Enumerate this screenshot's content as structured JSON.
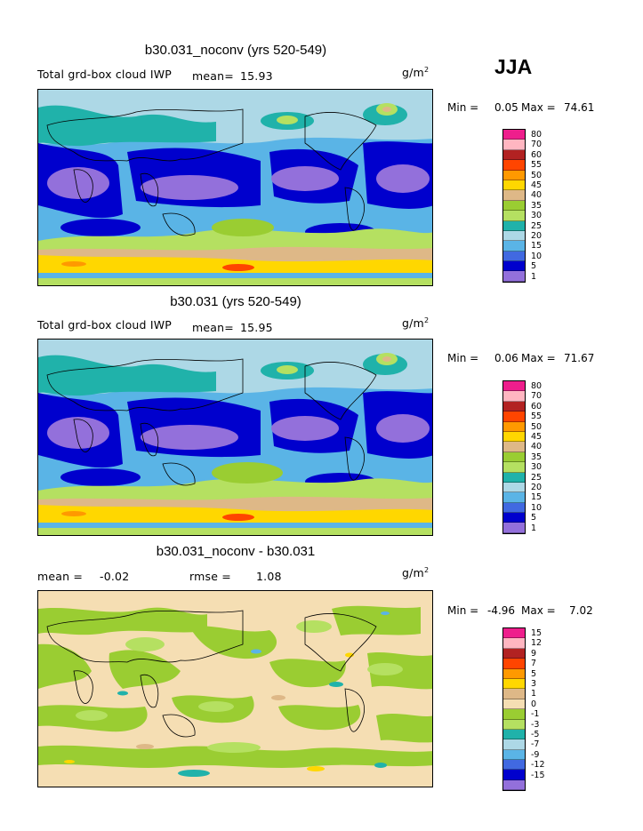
{
  "season": "JJA",
  "unit_base": "g/m",
  "unit_exp": "2",
  "panels": [
    {
      "title": "b30.031_noconv (yrs 520-549)",
      "left_label": "Total grd-box cloud IWP",
      "mean_label": "mean=",
      "mean_value": "15.93",
      "min_label": "Min =",
      "min_value": "0.05",
      "max_label": "Max =",
      "max_value": "74.61",
      "legend": {
        "labels": [
          "80",
          "70",
          "60",
          "55",
          "50",
          "45",
          "40",
          "35",
          "30",
          "25",
          "20",
          "15",
          "10",
          "5",
          "1"
        ],
        "colors": [
          "#ee1e8c",
          "#ffb6c1",
          "#b22222",
          "#ff4500",
          "#ff9900",
          "#ffd700",
          "#deb887",
          "#9acd32",
          "#b5e061",
          "#20b2aa",
          "#add8e6",
          "#5ab4e6",
          "#4169e1",
          "#0000cd",
          "#9370db"
        ]
      }
    },
    {
      "title": "b30.031 (yrs 520-549)",
      "left_label": "Total grd-box cloud IWP",
      "mean_label": "mean=",
      "mean_value": "15.95",
      "min_label": "Min =",
      "min_value": "0.06",
      "max_label": "Max =",
      "max_value": "71.67",
      "legend": {
        "labels": [
          "80",
          "70",
          "60",
          "55",
          "50",
          "45",
          "40",
          "35",
          "30",
          "25",
          "20",
          "15",
          "10",
          "5",
          "1"
        ],
        "colors": [
          "#ee1e8c",
          "#ffb6c1",
          "#b22222",
          "#ff4500",
          "#ff9900",
          "#ffd700",
          "#deb887",
          "#9acd32",
          "#b5e061",
          "#20b2aa",
          "#add8e6",
          "#5ab4e6",
          "#4169e1",
          "#0000cd",
          "#9370db"
        ]
      }
    },
    {
      "title": "b30.031_noconv - b30.031",
      "mean_label": "mean =",
      "mean_value": "-0.02",
      "rmse_label": "rmse =",
      "rmse_value": "1.08",
      "min_label": "Min =",
      "min_value": "-4.96",
      "max_label": "Max =",
      "max_value": "7.02",
      "legend": {
        "labels": [
          "15",
          "12",
          "9",
          "7",
          "5",
          "3",
          "1",
          "0",
          "-1",
          "-3",
          "-5",
          "-7",
          "-9",
          "-12",
          "-15"
        ],
        "colors": [
          "#ee1e8c",
          "#ffb6c1",
          "#b22222",
          "#ff4500",
          "#ff9900",
          "#ffd700",
          "#deb887",
          "#f5deb3",
          "#9acd32",
          "#b5e061",
          "#20b2aa",
          "#add8e6",
          "#5ab4e6",
          "#4169e1",
          "#0000cd",
          "#9370db"
        ]
      }
    }
  ]
}
